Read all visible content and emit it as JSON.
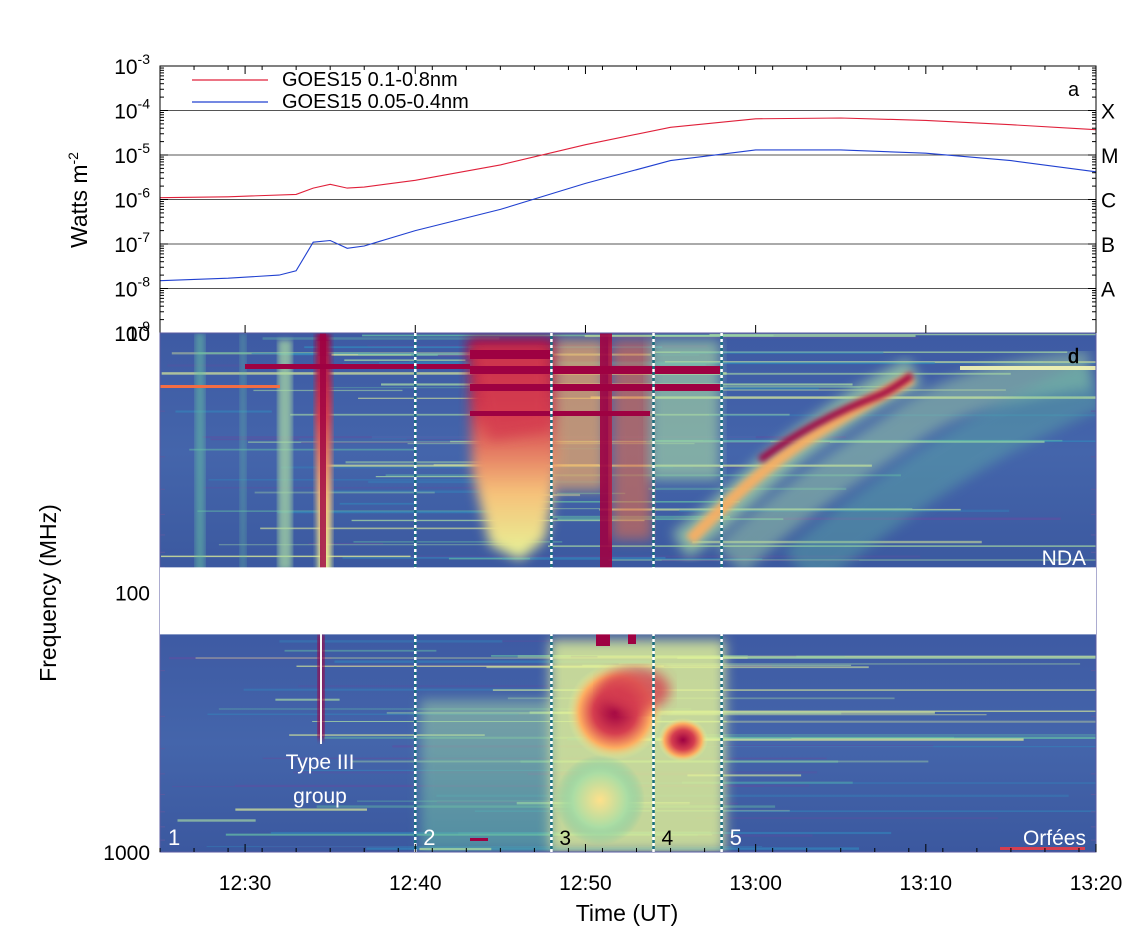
{
  "chart_data": [
    {
      "type": "line",
      "panel_label": "a",
      "ylabel": "Watts m",
      "ylabel_exponent": "-2",
      "yscale": "log",
      "ylim": [
        1e-09,
        0.001
      ],
      "yticks": [
        {
          "base": "10",
          "exp": "-3",
          "value": 0.001
        },
        {
          "base": "10",
          "exp": "-4",
          "value": 0.0001
        },
        {
          "base": "10",
          "exp": "-5",
          "value": 1e-05
        },
        {
          "base": "10",
          "exp": "-6",
          "value": 1e-06
        },
        {
          "base": "10",
          "exp": "-7",
          "value": 1e-07
        },
        {
          "base": "10",
          "exp": "-8",
          "value": 1e-08
        },
        {
          "base": "10",
          "exp": "-9",
          "value": 1e-09
        }
      ],
      "flare_classes": [
        {
          "label": "X",
          "value": 0.0001
        },
        {
          "label": "M",
          "value": 1e-05
        },
        {
          "label": "C",
          "value": 1e-06
        },
        {
          "label": "B",
          "value": 1e-07
        },
        {
          "label": "A",
          "value": 1e-08
        }
      ],
      "xlim": [
        "12:25",
        "13:20"
      ],
      "series": [
        {
          "name": "GOES15 0.1-0.8nm",
          "color": "#e0203a",
          "x": [
            "12:25",
            "12:29",
            "12:33",
            "12:34",
            "12:35",
            "12:36",
            "12:37",
            "12:40",
            "12:45",
            "12:50",
            "12:55",
            "13:00",
            "13:05",
            "13:10",
            "13:15",
            "13:20"
          ],
          "y": [
            1.1e-06,
            1.15e-06,
            1.3e-06,
            1.8e-06,
            2.2e-06,
            1.8e-06,
            1.9e-06,
            2.7e-06,
            6e-06,
            1.7e-05,
            4.2e-05,
            6.5e-05,
            6.8e-05,
            6e-05,
            4.8e-05,
            3.7e-05
          ]
        },
        {
          "name": "GOES15 0.05-0.4nm",
          "color": "#2040d0",
          "x": [
            "12:25",
            "12:29",
            "12:32",
            "12:33",
            "12:34",
            "12:35",
            "12:36",
            "12:37",
            "12:40",
            "12:45",
            "12:50",
            "12:55",
            "13:00",
            "13:05",
            "13:10",
            "13:15",
            "13:20"
          ],
          "y": [
            1.5e-08,
            1.7e-08,
            2e-08,
            2.5e-08,
            1.1e-07,
            1.2e-07,
            8e-08,
            9e-08,
            2e-07,
            6e-07,
            2.3e-06,
            7.5e-06,
            1.3e-05,
            1.3e-05,
            1.1e-05,
            7.5e-06,
            4.2e-06
          ]
        }
      ]
    },
    {
      "type": "heatmap",
      "panel_label": "d",
      "ylabel": "Frequency (MHz)",
      "xlabel": "Time (UT)",
      "yscale": "log",
      "yinverted": true,
      "ylim": [
        10,
        1000
      ],
      "yticks": [
        {
          "label": "10",
          "value": 10
        },
        {
          "label": "100",
          "value": 100
        },
        {
          "label": "1000",
          "value": 1000
        }
      ],
      "xlim": [
        "12:25",
        "13:20"
      ],
      "xticks": [
        "12:30",
        "12:40",
        "12:50",
        "13:00",
        "13:10",
        "13:20"
      ],
      "instruments": [
        {
          "label": "NDA",
          "freq_range": [
            10,
            80
          ]
        },
        {
          "label": "Orfées",
          "freq_range": [
            145,
            1000
          ]
        }
      ],
      "data_gap_mhz": [
        80,
        145
      ],
      "annotation": {
        "line1": "Type III",
        "line2": "group"
      },
      "time_markers": [
        {
          "label": "1",
          "time": "12:25",
          "line": false
        },
        {
          "label": "2",
          "time": "12:40",
          "line": true
        },
        {
          "label": "3",
          "time": "12:48",
          "line": true
        },
        {
          "label": "4",
          "time": "12:54",
          "line": true
        },
        {
          "label": "5",
          "time": "12:58",
          "line": true
        }
      ]
    }
  ]
}
